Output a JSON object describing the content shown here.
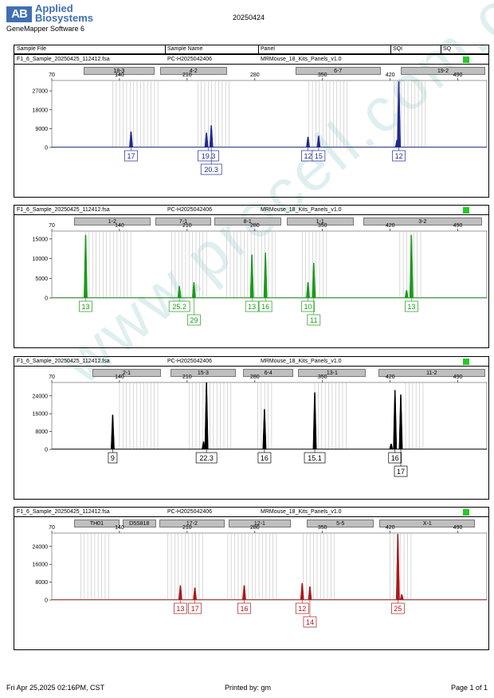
{
  "header": {
    "logo_mark": "AB",
    "brand_line1": "Applied",
    "brand_line2": "Biosystems",
    "software": "GeneMapper Software 6",
    "report_date": "20250424"
  },
  "columns": {
    "sample_file": "Sample File",
    "sample_name": "Sample Name",
    "panel": "Panel",
    "sqi": "SQI",
    "sq": "SQ"
  },
  "watermark": "www.procell.com.cn",
  "footer": {
    "left": "Fri Apr 25,2025 02:16PM, CST",
    "center": "Printed by: gm",
    "right": "Page 1 of 1"
  },
  "status_color": "#28c828",
  "chart_data": [
    {
      "type": "electropherogram",
      "sample_file": "F1_6_Sample_20250425_112412.fsa",
      "sample_name": "PC-H2025042406",
      "panel": "MRMouse_18_Kits_Panels_v1.0",
      "color": "#1f2a8c",
      "xlim": [
        70,
        520
      ],
      "xticks": [
        70,
        140,
        210,
        280,
        350,
        420,
        490
      ],
      "ylim": [
        0,
        32000
      ],
      "yticks": [
        0,
        9000,
        18000,
        27000
      ],
      "markers": [
        {
          "name": "18-3",
          "range": [
            103,
            176
          ]
        },
        {
          "name": "4-2",
          "range": [
            182,
            251
          ]
        },
        {
          "name": "6-7",
          "range": [
            322,
            410
          ]
        },
        {
          "name": "19-2",
          "range": [
            431,
            530
          ]
        }
      ],
      "bins": [
        [
          133,
          180
        ],
        [
          221,
          255
        ],
        [
          336,
          378
        ],
        [
          424,
          460
        ]
      ],
      "peaks": [
        {
          "x": 152,
          "y": 7500
        },
        {
          "x": 230,
          "y": 7000
        },
        {
          "x": 235,
          "y": 10500
        },
        {
          "x": 335,
          "y": 5000
        },
        {
          "x": 346,
          "y": 5500
        },
        {
          "x": 429,
          "y": 31500
        },
        {
          "x": 427,
          "y": 3500
        }
      ],
      "labels": [
        {
          "text": "17",
          "x": 152,
          "row": 1
        },
        {
          "text": "19.3",
          "x": 232,
          "row": 1
        },
        {
          "text": "20.3",
          "x": 235,
          "row": 2
        },
        {
          "text": "12",
          "x": 335,
          "row": 1
        },
        {
          "text": "15",
          "x": 346,
          "row": 1
        },
        {
          "text": "12",
          "x": 429,
          "row": 1
        }
      ]
    },
    {
      "type": "electropherogram",
      "sample_file": "F1_6_Sample_20250425_112412.fsa",
      "sample_name": "PC-H2025042406",
      "panel": "MRMouse_18_Kits_Panels_v1.0",
      "color": "#1a9a1a",
      "xlim": [
        70,
        520
      ],
      "xticks": [
        70,
        140,
        210,
        280,
        350,
        420,
        490
      ],
      "ylim": [
        0,
        17000
      ],
      "yticks": [
        0,
        5000,
        10000,
        15000
      ],
      "markers": [
        {
          "name": "1-2",
          "range": [
            93,
            172
          ]
        },
        {
          "name": "7-1",
          "range": [
            177,
            235
          ]
        },
        {
          "name": "8-1",
          "range": [
            238,
            307
          ]
        },
        {
          "name": "1-1",
          "range": [
            313,
            382
          ]
        },
        {
          "name": "3-2",
          "range": [
            392,
            515
          ]
        }
      ],
      "bins": [
        [
          105,
          153
        ],
        [
          194,
          230
        ],
        [
          251,
          303
        ],
        [
          329,
          355
        ],
        [
          430,
          455
        ]
      ],
      "peaks": [
        {
          "x": 105,
          "y": 16000
        },
        {
          "x": 202,
          "y": 3000
        },
        {
          "x": 217,
          "y": 4000
        },
        {
          "x": 277,
          "y": 11000
        },
        {
          "x": 291,
          "y": 11500
        },
        {
          "x": 335,
          "y": 4000
        },
        {
          "x": 341,
          "y": 8900
        },
        {
          "x": 442,
          "y": 16000
        },
        {
          "x": 437,
          "y": 2000
        }
      ],
      "labels": [
        {
          "text": "13",
          "x": 105,
          "row": 1
        },
        {
          "text": "25.2",
          "x": 202,
          "row": 1
        },
        {
          "text": "29",
          "x": 217,
          "row": 2
        },
        {
          "text": "13",
          "x": 277,
          "row": 1
        },
        {
          "text": "16",
          "x": 291,
          "row": 1
        },
        {
          "text": "10",
          "x": 335,
          "row": 1
        },
        {
          "text": "11",
          "x": 341,
          "row": 2
        },
        {
          "text": "13",
          "x": 442,
          "row": 1
        }
      ]
    },
    {
      "type": "electropherogram",
      "sample_file": "F1_6_Sample_20250425_112412.fsa",
      "sample_name": "PC-H2025042406",
      "panel": "MRMouse_18_Kits_Panels_v1.0",
      "color": "#000000",
      "xlim": [
        70,
        520
      ],
      "xticks": [
        70,
        140,
        210,
        280,
        350,
        420,
        490
      ],
      "ylim": [
        0,
        30000
      ],
      "yticks": [
        0,
        8000,
        16000,
        24000
      ],
      "markers": [
        {
          "name": "2-1",
          "range": [
            112,
            183
          ]
        },
        {
          "name": "15-3",
          "range": [
            193,
            260
          ]
        },
        {
          "name": "6-4",
          "range": [
            268,
            320
          ]
        },
        {
          "name": "13-1",
          "range": [
            325,
            395
          ]
        },
        {
          "name": "11-2",
          "range": [
            408,
            518
          ]
        }
      ],
      "bins": [
        [
          140,
          180
        ],
        [
          212,
          256
        ],
        [
          283,
          300
        ],
        [
          342,
          375
        ],
        [
          436,
          455
        ]
      ],
      "peaks": [
        {
          "x": 133,
          "y": 15500
        },
        {
          "x": 227,
          "y": 3500
        },
        {
          "x": 230,
          "y": 30000
        },
        {
          "x": 290,
          "y": 18000
        },
        {
          "x": 342,
          "y": 25500
        },
        {
          "x": 425,
          "y": 26500
        },
        {
          "x": 431,
          "y": 24500
        },
        {
          "x": 421,
          "y": 2500
        }
      ],
      "labels": [
        {
          "text": "9",
          "x": 133,
          "row": 1
        },
        {
          "text": "22.3",
          "x": 230,
          "row": 1
        },
        {
          "text": "16",
          "x": 290,
          "row": 1
        },
        {
          "text": "15.1",
          "x": 342,
          "row": 1
        },
        {
          "text": "16",
          "x": 425,
          "row": 1
        },
        {
          "text": "17",
          "x": 431,
          "row": 2
        }
      ]
    },
    {
      "type": "electropherogram",
      "sample_file": "F1_6_Sample_20250425_112412.fsa",
      "sample_name": "PC-H2025042406",
      "panel": "MRMouse_18_Kits_Panels_v1.0",
      "color": "#a81a1a",
      "xlim": [
        70,
        520
      ],
      "xticks": [
        70,
        140,
        210,
        280,
        350,
        420,
        490
      ],
      "ylim": [
        0,
        30000
      ],
      "yticks": [
        0,
        8000,
        16000,
        24000
      ],
      "markers": [
        {
          "name": "TH01",
          "range": [
            93,
            140
          ]
        },
        {
          "name": "D5S818",
          "range": [
            143,
            178
          ]
        },
        {
          "name": "17-2",
          "range": [
            181,
            249
          ]
        },
        {
          "name": "12-1",
          "range": [
            253,
            317
          ]
        },
        {
          "name": "5-5",
          "range": [
            334,
            403
          ]
        },
        {
          "name": "X-1",
          "range": [
            409,
            508
          ]
        }
      ],
      "bins": [
        [
          100,
          130
        ],
        [
          190,
          226
        ],
        [
          252,
          305
        ],
        [
          330,
          365
        ],
        [
          420,
          445
        ]
      ],
      "peaks": [
        {
          "x": 203,
          "y": 6500
        },
        {
          "x": 218,
          "y": 5500
        },
        {
          "x": 269,
          "y": 6500
        },
        {
          "x": 329,
          "y": 7500
        },
        {
          "x": 337,
          "y": 6000
        },
        {
          "x": 428,
          "y": 29500
        },
        {
          "x": 432,
          "y": 2500
        }
      ],
      "labels": [
        {
          "text": "13",
          "x": 203,
          "row": 1
        },
        {
          "text": "17",
          "x": 218,
          "row": 1
        },
        {
          "text": "16",
          "x": 269,
          "row": 1
        },
        {
          "text": "12",
          "x": 329,
          "row": 1
        },
        {
          "text": "14",
          "x": 337,
          "row": 2
        },
        {
          "text": "25",
          "x": 428,
          "row": 1
        }
      ]
    }
  ]
}
